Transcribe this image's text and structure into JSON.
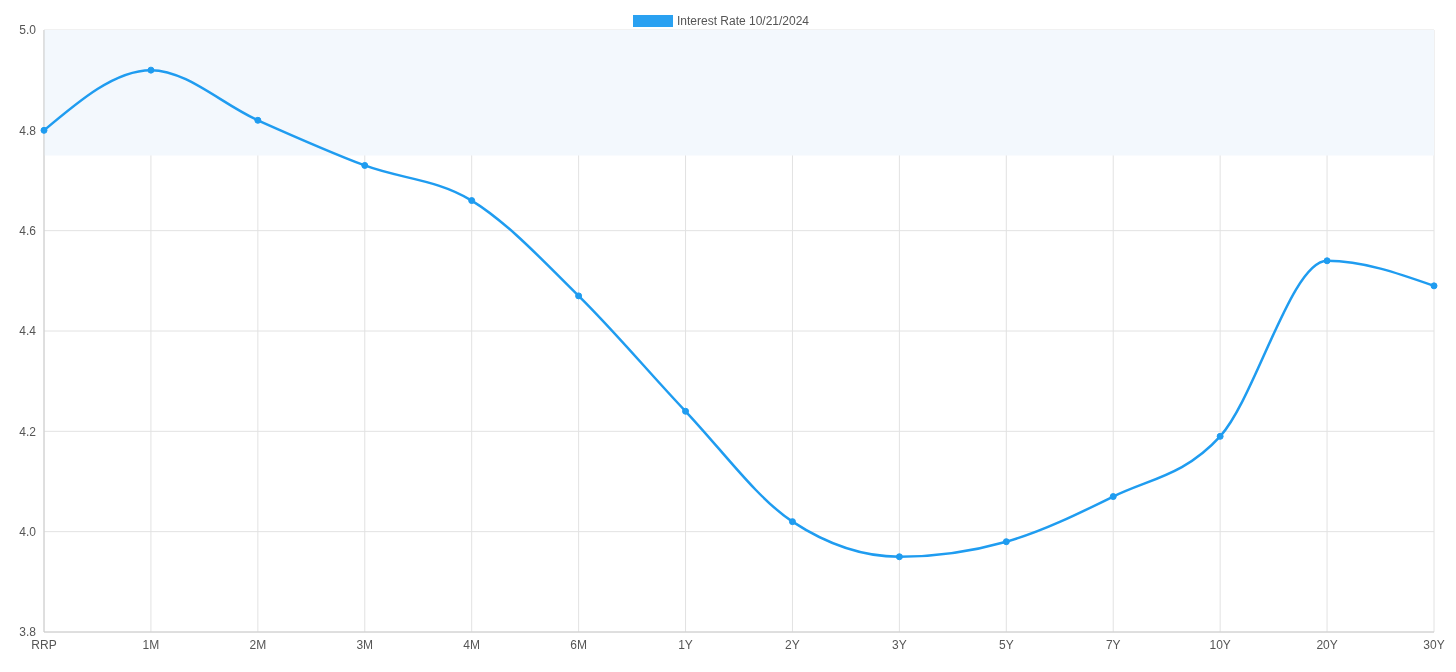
{
  "chart_data": {
    "type": "line",
    "categories": [
      "RRP",
      "1M",
      "2M",
      "3M",
      "4M",
      "6M",
      "1Y",
      "2Y",
      "3Y",
      "5Y",
      "7Y",
      "10Y",
      "20Y",
      "30Y"
    ],
    "series": [
      {
        "name": "Interest Rate 10/21/2024",
        "color": "#1f9cf0",
        "values": [
          4.8,
          4.92,
          4.82,
          4.73,
          4.66,
          4.47,
          4.24,
          4.02,
          3.95,
          3.98,
          4.07,
          4.19,
          4.54,
          4.49
        ]
      }
    ],
    "ylim": [
      3.8,
      5.0
    ],
    "yticks": [
      {
        "value": 3.8,
        "label": "3.8"
      },
      {
        "value": 4.0,
        "label": "4.0"
      },
      {
        "value": 4.2,
        "label": "4.2"
      },
      {
        "value": 4.4,
        "label": "4.4"
      },
      {
        "value": 4.6,
        "label": "4.6"
      },
      {
        "value": 4.8,
        "label": "4.8"
      },
      {
        "value": 5.0,
        "label": "5.0"
      }
    ],
    "bands": [
      {
        "axis": "y",
        "from": 4.75,
        "to": 5.0,
        "color": "#f3f8fd"
      }
    ],
    "grid": true,
    "legend": "top",
    "marker": "circle",
    "line_style": "solid"
  }
}
